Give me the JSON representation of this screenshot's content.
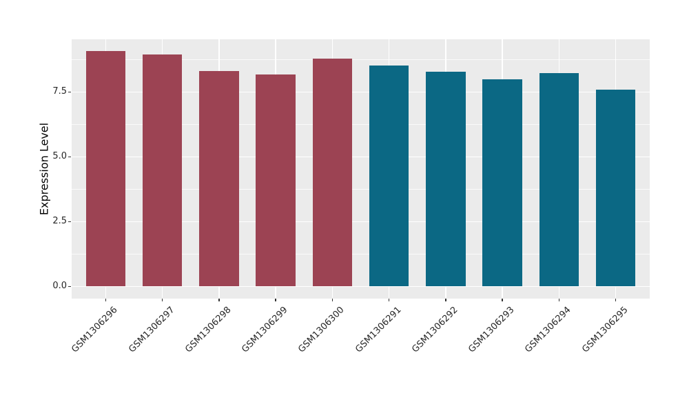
{
  "chart_data": {
    "type": "bar",
    "title": "",
    "xlabel": "",
    "ylabel": "Expression Level",
    "categories": [
      "GSM1306296",
      "GSM1306297",
      "GSM1306298",
      "GSM1306299",
      "GSM1306300",
      "GSM1306291",
      "GSM1306292",
      "GSM1306293",
      "GSM1306294",
      "GSM1306295"
    ],
    "values": [
      9.08,
      8.94,
      8.3,
      8.18,
      8.78,
      8.53,
      8.29,
      8.0,
      8.24,
      7.59
    ],
    "bar_colors": [
      "#9C4353",
      "#9C4353",
      "#9C4353",
      "#9C4353",
      "#9C4353",
      "#0B6884",
      "#0B6884",
      "#0B6884",
      "#0B6884",
      "#0B6884"
    ],
    "ylim": [
      -0.47,
      9.53
    ],
    "yticks": [
      0,
      2.5,
      5,
      7.5
    ],
    "ytick_labels": [
      "0.0",
      "2.5",
      "5.0",
      "7.5"
    ],
    "y_minor_ticks": [
      1.25,
      3.75,
      6.25,
      8.75
    ],
    "bar_width_fraction": 0.7,
    "x_label_rotation_deg": 45,
    "grid": "on",
    "legend_position": "none",
    "panel_background": "#EBEBEB",
    "grid_color": "#FFFFFF",
    "axis_text_color": "#262626"
  }
}
